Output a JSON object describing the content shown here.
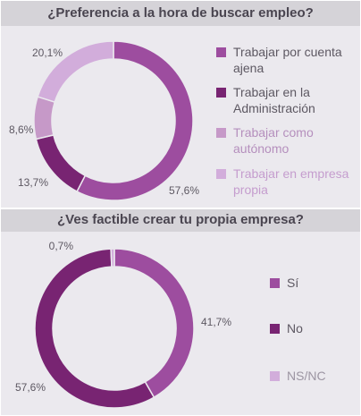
{
  "chart_data": [
    {
      "type": "pie",
      "title": "¿Preferencia a la hora de buscar empleo?",
      "categories": [
        "Trabajar por cuenta ajena",
        "Trabajar en la Administración",
        "Trabajar como autónomo",
        "Trabajar en empresa propia"
      ],
      "values": [
        57.6,
        13.7,
        8.6,
        20.1
      ],
      "value_labels": [
        "57,6%",
        "13,7%",
        "8,6%",
        "20,1%"
      ],
      "colors": [
        "#9d4d9f",
        "#782472",
        "#c699c8",
        "#d2addb"
      ],
      "legend_text_colors": [
        "#5d5862",
        "#5d5862",
        "#b58fbd",
        "#c59dce"
      ],
      "legend_position": "right"
    },
    {
      "type": "pie",
      "title": "¿Ves factible crear tu propia empresa?",
      "categories": [
        "Sí",
        "No",
        "NS/NC"
      ],
      "values": [
        41.7,
        57.6,
        0.7
      ],
      "value_labels": [
        "41,7%",
        "57,6%",
        "0,7%"
      ],
      "colors": [
        "#9d4d9f",
        "#782472",
        "#d2addb"
      ],
      "legend_text_colors": [
        "#5d5862",
        "#5d5862",
        "#9c95a2"
      ],
      "legend_position": "right"
    }
  ]
}
